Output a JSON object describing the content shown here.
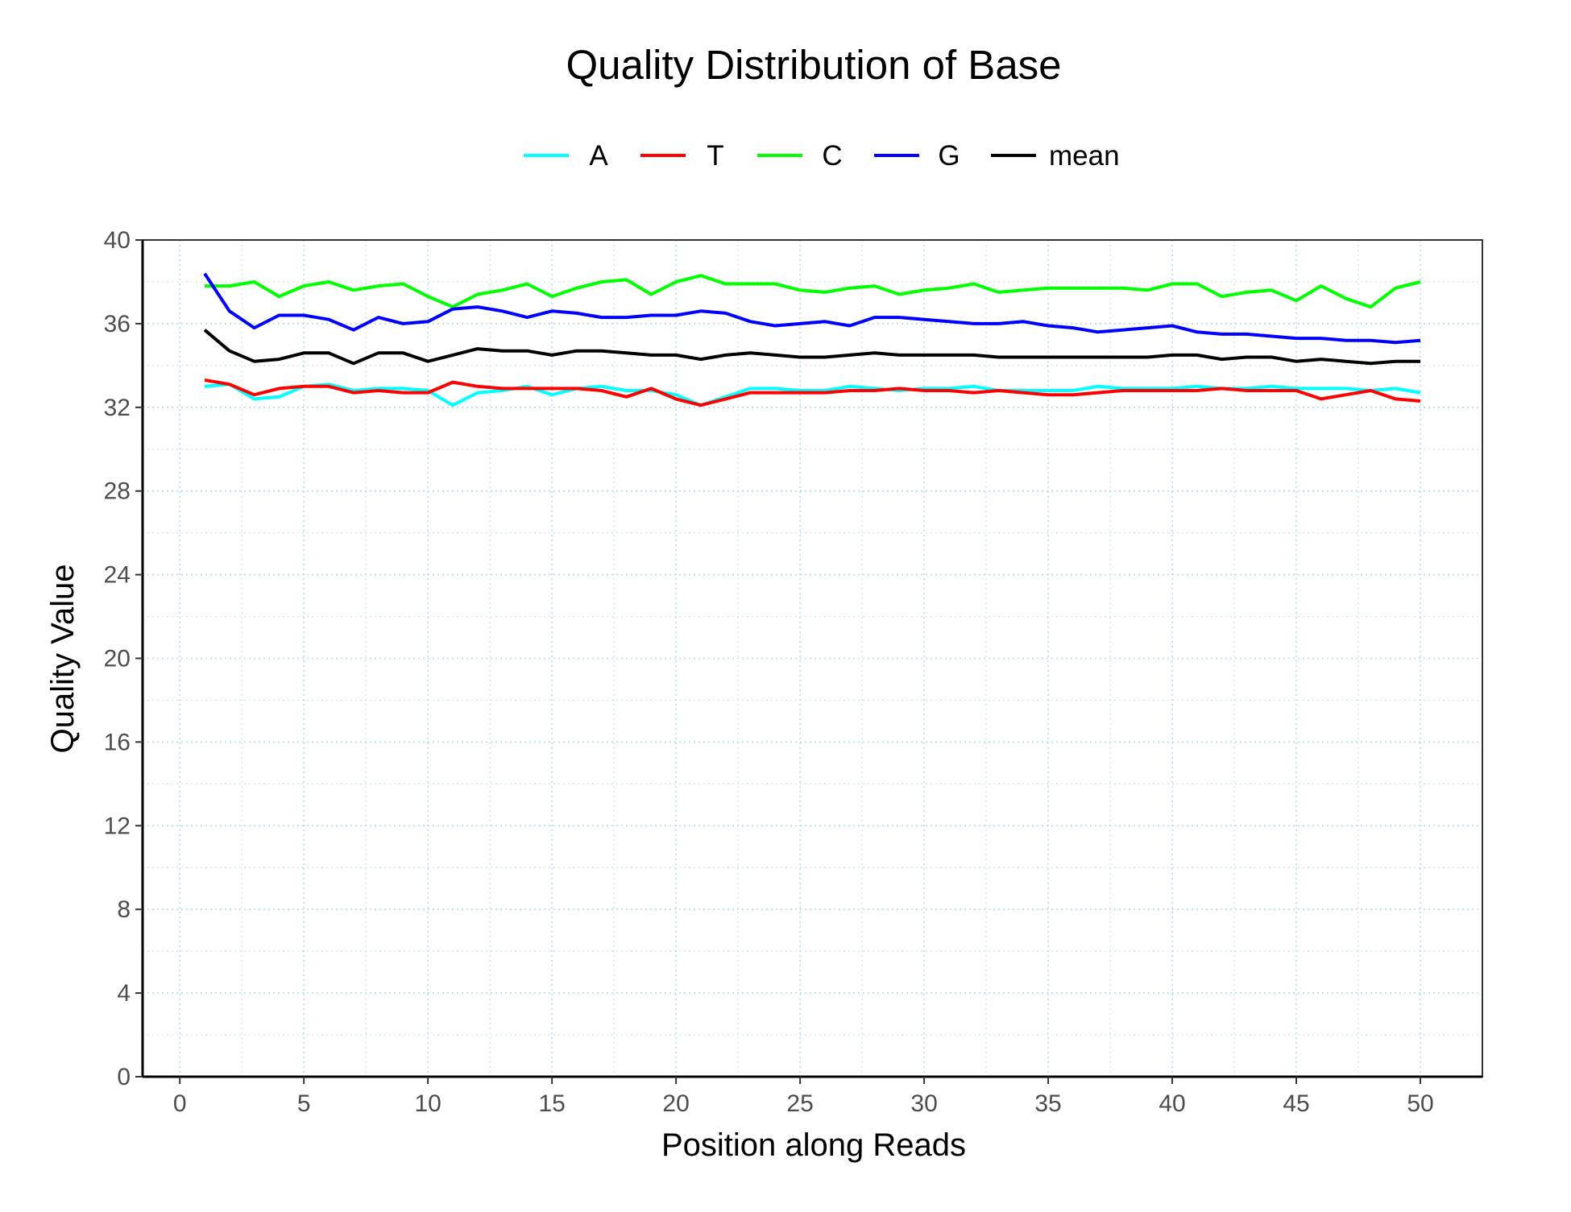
{
  "chart_data": {
    "type": "line",
    "title": "Quality Distribution of Base",
    "xlabel": "Position along Reads",
    "ylabel": "Quality Value",
    "xlim": [
      -1.5,
      52.5
    ],
    "ylim": [
      0,
      40
    ],
    "xticks": [
      0,
      5,
      10,
      15,
      20,
      25,
      30,
      35,
      40,
      45,
      50
    ],
    "yticks": [
      0,
      4,
      8,
      12,
      16,
      20,
      24,
      28,
      32,
      36,
      40
    ],
    "grid": true,
    "legend_position": "top",
    "x": [
      1,
      2,
      3,
      4,
      5,
      6,
      7,
      8,
      9,
      10,
      11,
      12,
      13,
      14,
      15,
      16,
      17,
      18,
      19,
      20,
      21,
      22,
      23,
      24,
      25,
      26,
      27,
      28,
      29,
      30,
      31,
      32,
      33,
      34,
      35,
      36,
      37,
      38,
      39,
      40,
      41,
      42,
      43,
      44,
      45,
      46,
      47,
      48,
      49,
      50
    ],
    "series": [
      {
        "name": "A",
        "color": "#00ffff",
        "values": [
          33.0,
          33.1,
          32.4,
          32.5,
          33.0,
          33.1,
          32.8,
          32.9,
          32.9,
          32.8,
          32.1,
          32.7,
          32.8,
          33.0,
          32.6,
          32.9,
          33.0,
          32.8,
          32.8,
          32.6,
          32.1,
          32.5,
          32.9,
          32.9,
          32.8,
          32.8,
          33.0,
          32.9,
          32.8,
          32.9,
          32.9,
          33.0,
          32.8,
          32.8,
          32.8,
          32.8,
          33.0,
          32.9,
          32.9,
          32.9,
          33.0,
          32.9,
          32.9,
          33.0,
          32.9,
          32.9,
          32.9,
          32.8,
          32.9,
          32.7
        ]
      },
      {
        "name": "T",
        "color": "#ff0000",
        "values": [
          33.3,
          33.1,
          32.6,
          32.9,
          33.0,
          33.0,
          32.7,
          32.8,
          32.7,
          32.7,
          33.2,
          33.0,
          32.9,
          32.9,
          32.9,
          32.9,
          32.8,
          32.5,
          32.9,
          32.4,
          32.1,
          32.4,
          32.7,
          32.7,
          32.7,
          32.7,
          32.8,
          32.8,
          32.9,
          32.8,
          32.8,
          32.7,
          32.8,
          32.7,
          32.6,
          32.6,
          32.7,
          32.8,
          32.8,
          32.8,
          32.8,
          32.9,
          32.8,
          32.8,
          32.8,
          32.4,
          32.6,
          32.8,
          32.4,
          32.3
        ]
      },
      {
        "name": "C",
        "color": "#00ff00",
        "values": [
          37.8,
          37.8,
          38.0,
          37.3,
          37.8,
          38.0,
          37.6,
          37.8,
          37.9,
          37.3,
          36.8,
          37.4,
          37.6,
          37.9,
          37.3,
          37.7,
          38.0,
          38.1,
          37.4,
          38.0,
          38.3,
          37.9,
          37.9,
          37.9,
          37.6,
          37.5,
          37.7,
          37.8,
          37.4,
          37.6,
          37.7,
          37.9,
          37.5,
          37.6,
          37.7,
          37.7,
          37.7,
          37.7,
          37.6,
          37.9,
          37.9,
          37.3,
          37.5,
          37.6,
          37.1,
          37.8,
          37.2,
          36.8,
          37.7,
          38.0
        ]
      },
      {
        "name": "G",
        "color": "#0000ff",
        "values": [
          38.4,
          36.6,
          35.8,
          36.4,
          36.4,
          36.2,
          35.7,
          36.3,
          36.0,
          36.1,
          36.7,
          36.8,
          36.6,
          36.3,
          36.6,
          36.5,
          36.3,
          36.3,
          36.4,
          36.4,
          36.6,
          36.5,
          36.1,
          35.9,
          36.0,
          36.1,
          35.9,
          36.3,
          36.3,
          36.2,
          36.1,
          36.0,
          36.0,
          36.1,
          35.9,
          35.8,
          35.6,
          35.7,
          35.8,
          35.9,
          35.6,
          35.5,
          35.5,
          35.4,
          35.3,
          35.3,
          35.2,
          35.2,
          35.1,
          35.2
        ]
      },
      {
        "name": "mean",
        "color": "#000000",
        "values": [
          35.7,
          34.7,
          34.2,
          34.3,
          34.6,
          34.6,
          34.1,
          34.6,
          34.6,
          34.2,
          34.5,
          34.8,
          34.7,
          34.7,
          34.5,
          34.7,
          34.7,
          34.6,
          34.5,
          34.5,
          34.3,
          34.5,
          34.6,
          34.5,
          34.4,
          34.4,
          34.5,
          34.6,
          34.5,
          34.5,
          34.5,
          34.5,
          34.4,
          34.4,
          34.4,
          34.4,
          34.4,
          34.4,
          34.4,
          34.5,
          34.5,
          34.3,
          34.4,
          34.4,
          34.2,
          34.3,
          34.2,
          34.1,
          34.2,
          34.2
        ]
      }
    ]
  }
}
